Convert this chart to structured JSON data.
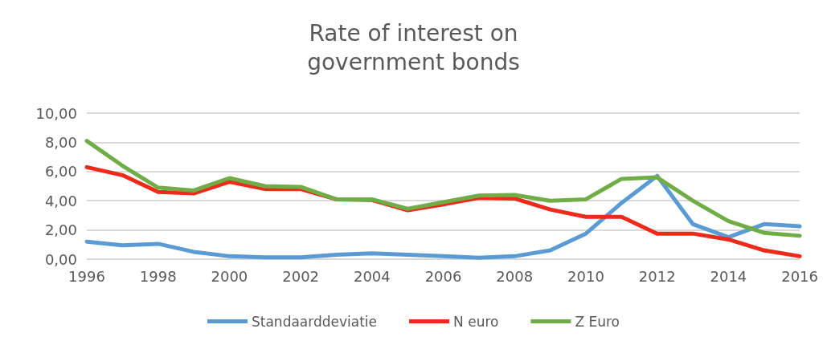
{
  "chart_data": {
    "type": "line",
    "title": "Rate of interest on\ngovernment bonds",
    "x": [
      1996,
      1997,
      1998,
      1999,
      2000,
      2001,
      2002,
      2003,
      2004,
      2005,
      2006,
      2007,
      2008,
      2009,
      2010,
      2011,
      2012,
      2013,
      2014,
      2015,
      2016
    ],
    "series": [
      {
        "name": "Standaarddeviatie",
        "color": "#5b9bd5",
        "values": [
          1.2,
          0.95,
          1.05,
          0.5,
          0.2,
          0.12,
          0.12,
          0.3,
          0.4,
          0.3,
          0.2,
          0.1,
          0.2,
          0.6,
          1.75,
          3.85,
          5.7,
          2.4,
          1.5,
          2.4,
          2.25
        ]
      },
      {
        "name": "N euro",
        "color": "#ee2a1b",
        "values": [
          6.3,
          5.75,
          4.6,
          4.5,
          5.3,
          4.8,
          4.8,
          4.1,
          4.05,
          3.35,
          3.75,
          4.2,
          4.15,
          3.4,
          2.9,
          2.9,
          1.75,
          1.75,
          1.35,
          0.6,
          0.2
        ]
      },
      {
        "name": "Z Euro",
        "color": "#70ad47",
        "values": [
          8.1,
          6.4,
          4.9,
          4.7,
          5.55,
          5.0,
          4.95,
          4.1,
          4.1,
          3.45,
          3.9,
          4.35,
          4.4,
          4.0,
          4.1,
          5.5,
          5.6,
          4.0,
          2.6,
          1.8,
          1.6
        ]
      }
    ],
    "xlim": [
      1996,
      2016
    ],
    "xticks": [
      1996,
      1998,
      2000,
      2002,
      2004,
      2006,
      2008,
      2010,
      2012,
      2014,
      2016
    ],
    "ylim": [
      0,
      10
    ],
    "yticks": [
      {
        "value": 0,
        "label": "0,00"
      },
      {
        "value": 2,
        "label": "2,00"
      },
      {
        "value": 4,
        "label": "4,00"
      },
      {
        "value": 6,
        "label": "6,00"
      },
      {
        "value": 8,
        "label": "8,00"
      },
      {
        "value": 10,
        "label": "10,00"
      }
    ],
    "grid": "y",
    "legend": "bottom",
    "marker": "none",
    "line_style": "solid"
  }
}
